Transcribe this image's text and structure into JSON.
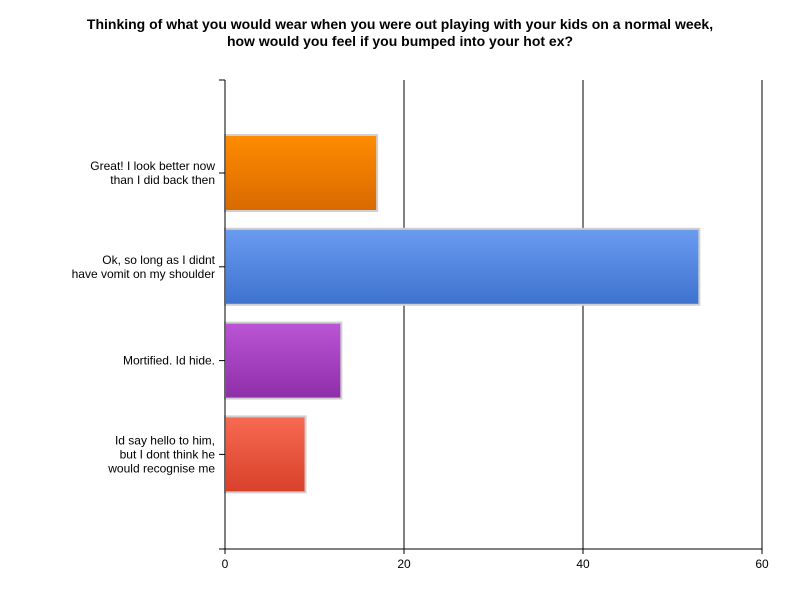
{
  "chart_data": {
    "type": "bar",
    "orientation": "horizontal",
    "title": [
      "Thinking of what you would wear when you were out playing with your kids on a normal week,",
      "how would you feel if you bumped into your hot ex?"
    ],
    "categories": [
      [
        "Great! I look better now",
        "than I did back then"
      ],
      [
        "Ok, so long as I didnt",
        "have vomit on my shoulder"
      ],
      [
        "Mortified. Id hide."
      ],
      [
        "Id say hello to him,",
        "but I dont think he",
        "would recognise me"
      ]
    ],
    "values": [
      17,
      53,
      13,
      9
    ],
    "bar_colors": [
      [
        "#ff8c00",
        "#d86a00"
      ],
      [
        "#6a9cf0",
        "#3d72cf"
      ],
      [
        "#bb55d6",
        "#8e2ea8"
      ],
      [
        "#f86a52",
        "#d8402a"
      ]
    ],
    "xlim": [
      0,
      60
    ],
    "xticks": [
      0,
      20,
      40,
      60
    ],
    "xlabel": "",
    "ylabel": "",
    "grid": "vertical",
    "legend": "none"
  }
}
